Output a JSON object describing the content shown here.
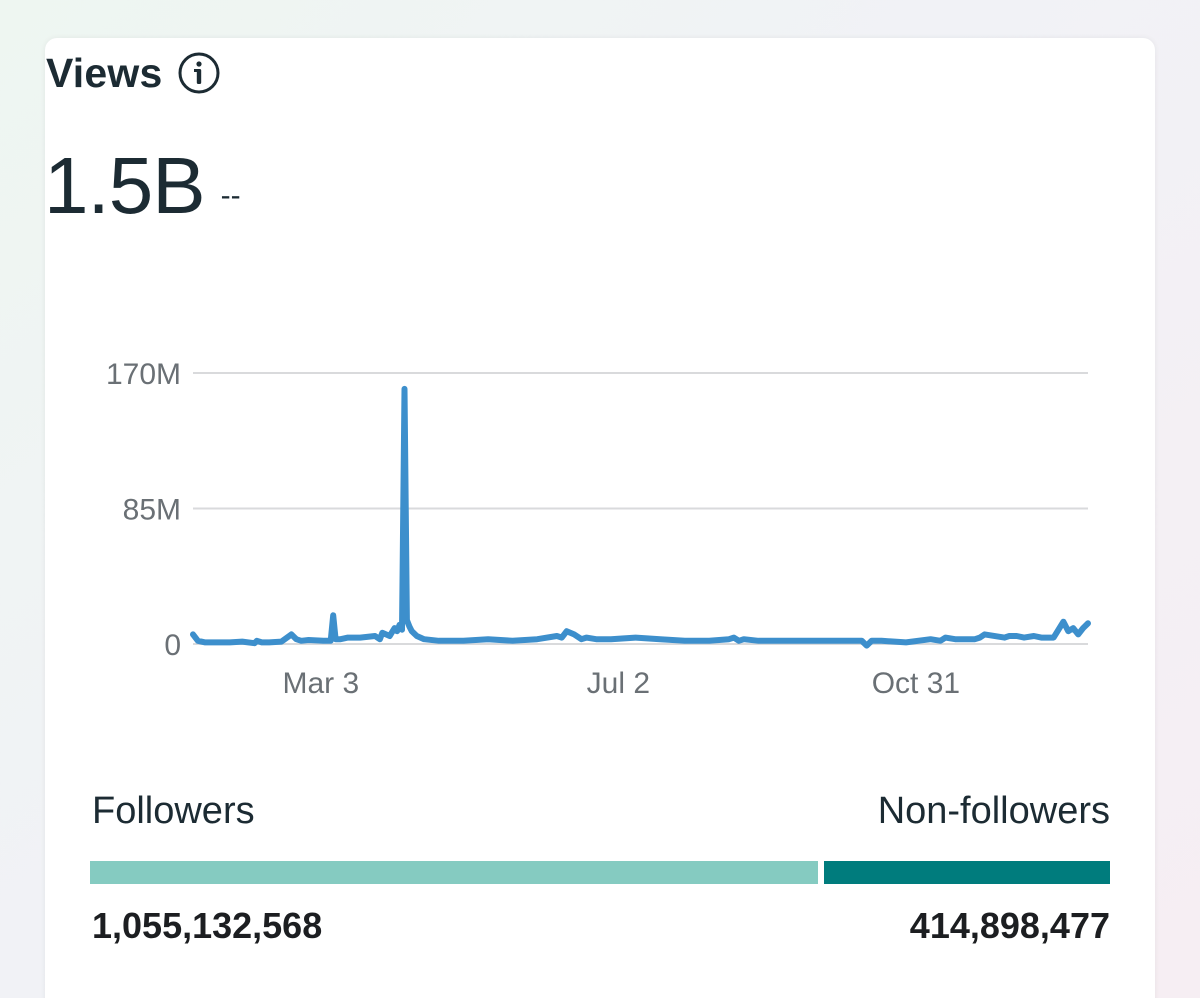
{
  "card": {
    "title": "Views",
    "total": "1.5B",
    "delta": "--"
  },
  "icons": {
    "info": "info-circle-icon"
  },
  "colors": {
    "line": "#3d8fcc",
    "grid": "#d9dadc",
    "axis_text": "#6a7075",
    "followers": "#85cbc1",
    "non_followers": "#007c7d"
  },
  "chart_data": {
    "type": "line",
    "title": "Views",
    "xlabel": "",
    "ylabel": "",
    "ylim": [
      0,
      170
    ],
    "y_unit": "M",
    "y_ticks": [
      {
        "value": 0,
        "label": "0"
      },
      {
        "value": 85,
        "label": "85M"
      },
      {
        "value": 170,
        "label": "170M"
      }
    ],
    "x_ticks": [
      {
        "day": 52,
        "label": "Mar 3"
      },
      {
        "day": 173,
        "label": "Jul 2"
      },
      {
        "day": 294,
        "label": "Oct 31"
      }
    ],
    "x_range": [
      0,
      364
    ],
    "series": [
      {
        "name": "Views",
        "days": [
          0,
          2,
          5,
          10,
          15,
          20,
          25,
          26,
          28,
          31,
          36,
          40,
          42,
          44,
          47,
          53,
          56,
          57,
          58,
          60,
          63,
          68,
          74,
          76,
          77,
          80,
          82,
          83,
          84,
          85,
          86,
          87,
          88,
          89,
          91,
          94,
          100,
          110,
          120,
          130,
          140,
          148,
          150,
          152,
          155,
          158,
          160,
          164,
          170,
          180,
          190,
          200,
          210,
          218,
          220,
          222,
          224,
          230,
          240,
          250,
          260,
          272,
          274,
          276,
          280,
          290,
          300,
          304,
          306,
          310,
          318,
          320,
          322,
          330,
          332,
          335,
          338,
          342,
          345,
          350,
          354,
          356,
          358,
          360,
          362,
          364
        ],
        "values": [
          6,
          2,
          1,
          1,
          1,
          1.5,
          0.5,
          2,
          1,
          1,
          1.5,
          6,
          3,
          2,
          2.5,
          2,
          2,
          18,
          3,
          3,
          4,
          4,
          5,
          3,
          7,
          5,
          10,
          8,
          12,
          9,
          160,
          15,
          11,
          8,
          5,
          3,
          2,
          2,
          3,
          2,
          3,
          5,
          4,
          8,
          6,
          3,
          4,
          3,
          3,
          4,
          3,
          2,
          2,
          3,
          4,
          2,
          3,
          2,
          2,
          2,
          2,
          2,
          -1,
          2,
          2,
          1,
          3,
          2,
          4,
          3,
          3,
          4,
          6,
          4,
          5,
          5,
          4,
          5,
          4,
          4,
          14,
          8,
          10,
          6,
          10,
          13
        ]
      }
    ],
    "breakdown": {
      "followers_label": "Followers",
      "non_followers_label": "Non-followers",
      "followers_value": 1055132568,
      "non_followers_value": 414898477,
      "followers_display": "1,055,132,568",
      "non_followers_display": "414,898,477"
    }
  }
}
